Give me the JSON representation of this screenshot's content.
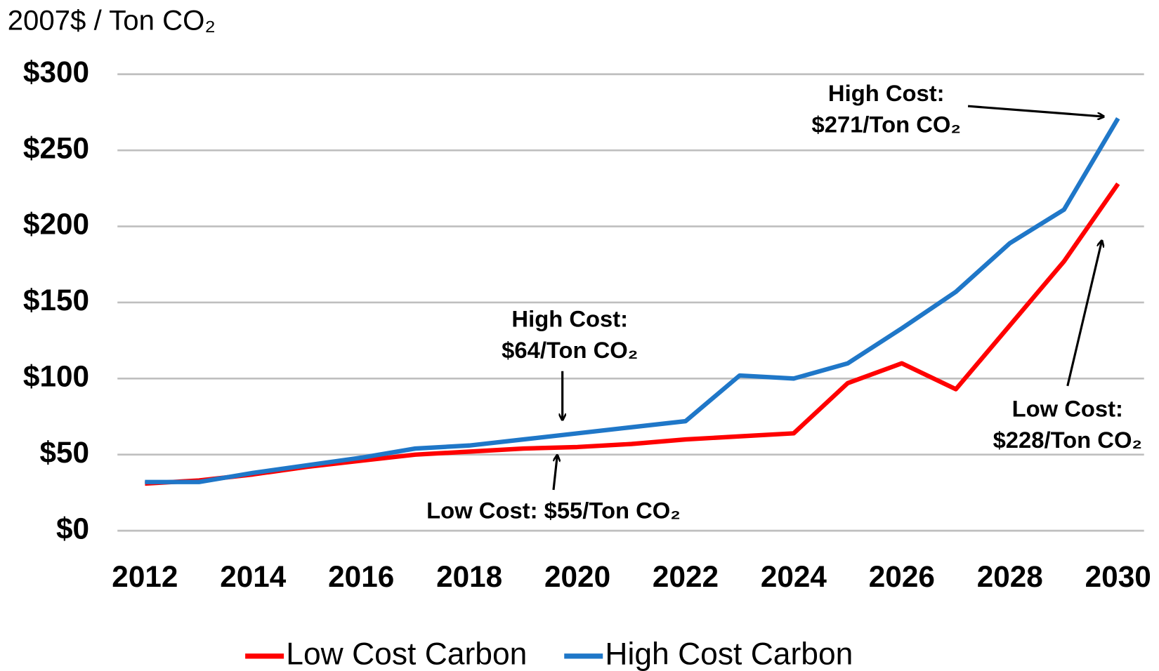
{
  "chart_data": {
    "type": "line",
    "y_label": "2007$ / Ton CO₂",
    "x": [
      2012,
      2013,
      2014,
      2015,
      2016,
      2017,
      2018,
      2019,
      2020,
      2021,
      2022,
      2023,
      2024,
      2025,
      2026,
      2027,
      2028,
      2029,
      2030
    ],
    "series": [
      {
        "name": "Low Cost Carbon",
        "color": "#ff0000",
        "values": [
          31,
          33,
          37,
          42,
          46,
          50,
          52,
          54,
          55,
          57,
          60,
          62,
          64,
          97,
          110,
          93,
          135,
          177,
          228
        ]
      },
      {
        "name": "High Cost Carbon",
        "color": "#1f77c8",
        "values": [
          32,
          32,
          38,
          43,
          48,
          54,
          56,
          60,
          64,
          68,
          72,
          102,
          100,
          110,
          133,
          157,
          189,
          211,
          271
        ]
      }
    ],
    "xlim": [
      2012,
      2030
    ],
    "xticks": [
      2012,
      2014,
      2016,
      2018,
      2020,
      2022,
      2024,
      2026,
      2028,
      2030
    ],
    "ylim": [
      0,
      300
    ],
    "yticks": [
      {
        "value": 0,
        "label": "$0"
      },
      {
        "value": 50,
        "label": "$50"
      },
      {
        "value": 100,
        "label": "$100"
      },
      {
        "value": 150,
        "label": "$150"
      },
      {
        "value": 200,
        "label": "$200"
      },
      {
        "value": 250,
        "label": "$250"
      },
      {
        "value": 300,
        "label": "$300"
      }
    ],
    "grid": true,
    "legend": "bottom",
    "annotations": [
      {
        "lines": [
          "High Cost:",
          "$271/Ton CO₂"
        ]
      },
      {
        "lines": [
          "High Cost:",
          "$64/Ton CO₂"
        ]
      },
      {
        "lines": [
          "Low Cost: $55/Ton CO₂"
        ]
      },
      {
        "lines": [
          "Low Cost:",
          "$228/Ton CO₂"
        ]
      }
    ]
  }
}
